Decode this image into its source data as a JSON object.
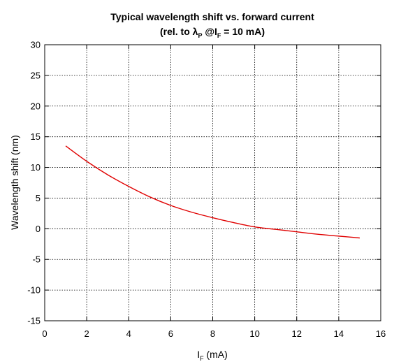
{
  "chart_data": {
    "type": "line",
    "title": "Typical wavelength shift vs. forward current",
    "subtitle": {
      "prefix": "(rel. to ",
      "lambda": "λ",
      "lambda_sub": "P",
      "at": " @",
      "current": "I",
      "current_sub": "F",
      "suffix": " = 10 mA)"
    },
    "xlabel": {
      "main": "I",
      "sub": "F",
      "unit": " (mA)"
    },
    "ylabel": "Wavelength shift (nm)",
    "xlim": [
      0,
      16
    ],
    "ylim": [
      -15,
      30
    ],
    "x_ticks": [
      0,
      2,
      4,
      6,
      8,
      10,
      12,
      14,
      16
    ],
    "y_ticks": [
      30,
      25,
      20,
      15,
      10,
      5,
      0,
      -5,
      -10,
      -15
    ],
    "grid": true,
    "series": [
      {
        "color": "#e00000",
        "x": [
          1,
          2,
          3,
          4,
          5,
          6,
          7,
          8,
          9,
          10,
          11,
          12,
          13,
          14,
          15
        ],
        "y": [
          13.5,
          11.0,
          8.8,
          6.9,
          5.2,
          3.8,
          2.7,
          1.8,
          1.0,
          0.3,
          -0.1,
          -0.5,
          -0.9,
          -1.2,
          -1.5
        ]
      }
    ]
  }
}
